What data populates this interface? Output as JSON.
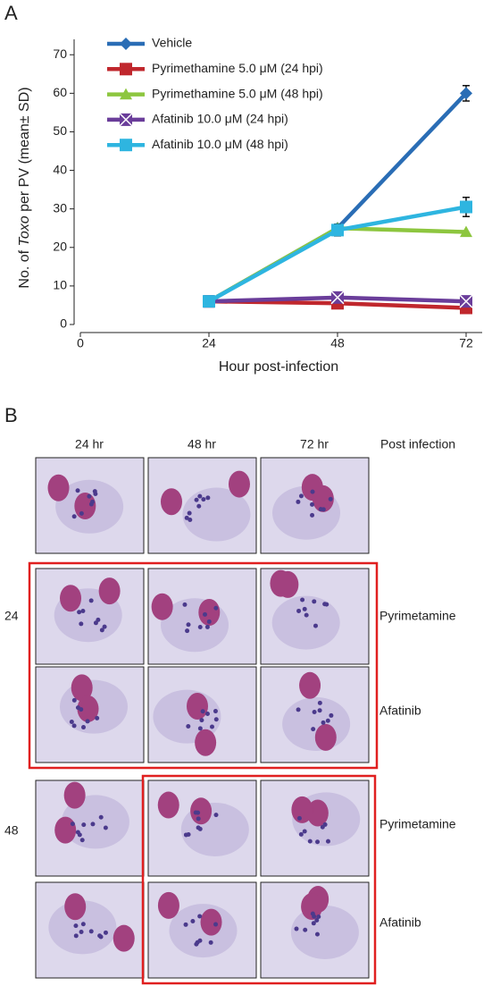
{
  "chart_data": {
    "type": "line",
    "panel_label": "A",
    "x_label": "Hour post-infection",
    "y_label_parts": [
      "No. of ",
      "Toxo",
      " per PV (mean± SD)"
    ],
    "x": [
      24,
      48,
      72
    ],
    "xlim": [
      0,
      75
    ],
    "xticks": [
      0,
      24,
      48,
      72
    ],
    "ylim": [
      0,
      74
    ],
    "yticks": [
      0,
      10,
      20,
      30,
      40,
      50,
      60,
      70
    ],
    "series": [
      {
        "name": "Vehicle",
        "color": "#2a6db5",
        "marker": "diamond",
        "values": [
          6,
          25,
          60
        ],
        "errors": [
          null,
          1,
          2
        ]
      },
      {
        "name": "Pyrimethamine 5.0 μM (24 hpi)",
        "color": "#c0272d",
        "marker": "square",
        "values": [
          6,
          5.5,
          4.3
        ]
      },
      {
        "name": "Pyrimethamine 5.0 μM (48 hpi)",
        "color": "#8dc63f",
        "marker": "triangle",
        "values": [
          6,
          25,
          24
        ]
      },
      {
        "name": "Afatinib 10.0 μM (24 hpi)",
        "color": "#6a3d9a",
        "marker": "xsquare",
        "values": [
          6,
          7,
          6
        ]
      },
      {
        "name": "Afatinib 10.0 μM (48 hpi)",
        "color": "#2eb5e0",
        "marker": "square",
        "values": [
          6,
          24.5,
          30.5
        ],
        "errors": [
          null,
          1.5,
          2.5
        ]
      }
    ]
  },
  "panel_b": {
    "label": "B",
    "columns": [
      "24 hr",
      "48 hr",
      "72 hr"
    ],
    "column_note": "Post infection",
    "row_groups": [
      {
        "label": "24",
        "treatments": [
          "Pyrimetamine",
          "Afatinib"
        ]
      },
      {
        "label": "48",
        "treatments": [
          "Pyrimetamine",
          "Afatinib"
        ]
      }
    ]
  }
}
